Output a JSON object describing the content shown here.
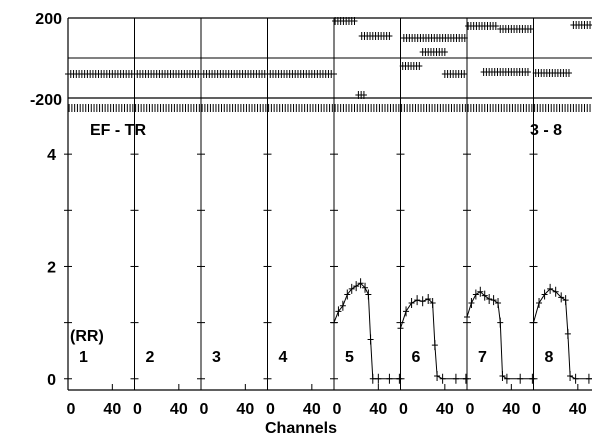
{
  "chart_data": {
    "type": "scatter",
    "xlabel": "Channels",
    "panel_labels": [
      "1",
      "2",
      "3",
      "4",
      "5",
      "6",
      "7",
      "8"
    ],
    "x_tick_labels": [
      "0",
      "40"
    ],
    "xlim": [
      0,
      60
    ],
    "phase": {
      "ylim": [
        -200,
        200
      ],
      "y_tick_labels": [
        "200",
        "-200"
      ]
    },
    "amplitude": {
      "ylim": [
        -0.2,
        5.0
      ],
      "y_tick_labels": [
        "4",
        "2",
        "0"
      ],
      "corner_label": "EF - TR",
      "baseline_label": "3 - 8",
      "polarization_label": "(RR)"
    },
    "series": [
      {
        "panel": "1",
        "phase": [
          [
            0,
            60,
            -80
          ]
        ],
        "amplitude": []
      },
      {
        "panel": "2",
        "phase": [
          [
            0,
            60,
            -80
          ]
        ],
        "amplitude": []
      },
      {
        "panel": "3",
        "phase": [
          [
            0,
            60,
            -80
          ]
        ],
        "amplitude": []
      },
      {
        "panel": "4",
        "phase": [
          [
            0,
            60,
            -80
          ]
        ],
        "amplitude": []
      },
      {
        "panel": "5",
        "phase": [
          [
            1,
            20,
            185
          ],
          [
            25,
            52,
            110
          ],
          [
            22,
            28,
            -185
          ]
        ],
        "amplitude": [
          [
            0,
            1.0
          ],
          [
            4,
            1.2
          ],
          [
            8,
            1.3
          ],
          [
            12,
            1.5
          ],
          [
            16,
            1.6
          ],
          [
            20,
            1.65
          ],
          [
            24,
            1.7
          ],
          [
            28,
            1.62
          ],
          [
            31,
            1.5
          ],
          [
            33,
            0.7
          ],
          [
            35,
            0.0
          ],
          [
            40,
            0.0
          ],
          [
            50,
            0.0
          ],
          [
            59,
            0.0
          ]
        ]
      },
      {
        "panel": "6",
        "phase": [
          [
            3,
            58,
            100
          ],
          [
            2,
            18,
            -40
          ],
          [
            20,
            40,
            30
          ],
          [
            40,
            58,
            -80
          ]
        ],
        "amplitude": [
          [
            0,
            0.9
          ],
          [
            5,
            1.2
          ],
          [
            10,
            1.35
          ],
          [
            15,
            1.4
          ],
          [
            20,
            1.38
          ],
          [
            25,
            1.42
          ],
          [
            29,
            1.35
          ],
          [
            31,
            0.6
          ],
          [
            33,
            0.05
          ],
          [
            38,
            0.0
          ],
          [
            50,
            0.0
          ],
          [
            59,
            0.0
          ]
        ]
      },
      {
        "panel": "7",
        "phase": [
          [
            1,
            28,
            160
          ],
          [
            30,
            58,
            145
          ],
          [
            15,
            55,
            -70
          ]
        ],
        "amplitude": [
          [
            0,
            1.1
          ],
          [
            4,
            1.35
          ],
          [
            8,
            1.5
          ],
          [
            12,
            1.55
          ],
          [
            16,
            1.48
          ],
          [
            20,
            1.42
          ],
          [
            24,
            1.4
          ],
          [
            28,
            1.35
          ],
          [
            30,
            1.0
          ],
          [
            32,
            0.05
          ],
          [
            36,
            0.0
          ],
          [
            48,
            0.0
          ],
          [
            59,
            0.0
          ]
        ]
      },
      {
        "panel": "8",
        "phase": [
          [
            2,
            34,
            -75
          ],
          [
            36,
            58,
            165
          ]
        ],
        "amplitude": [
          [
            0,
            1.0
          ],
          [
            5,
            1.35
          ],
          [
            10,
            1.5
          ],
          [
            15,
            1.6
          ],
          [
            20,
            1.55
          ],
          [
            25,
            1.45
          ],
          [
            29,
            1.4
          ],
          [
            31,
            0.8
          ],
          [
            33,
            0.05
          ],
          [
            38,
            0.0
          ],
          [
            50,
            0.0
          ],
          [
            59,
            0.0
          ]
        ]
      }
    ]
  }
}
